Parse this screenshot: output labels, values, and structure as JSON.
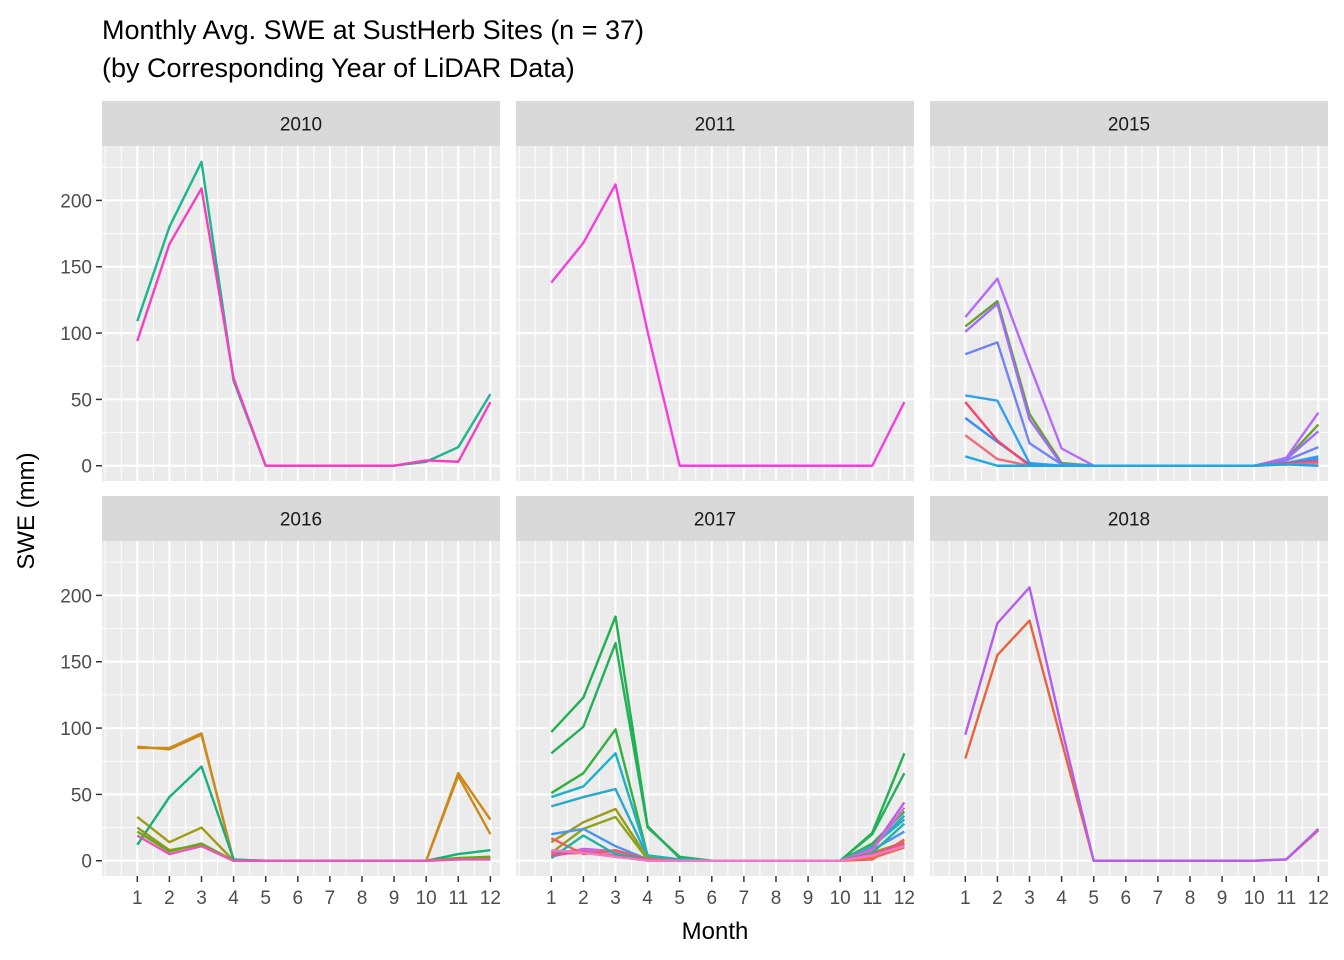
{
  "chart_data": {
    "type": "line",
    "title": "Monthly Avg. SWE at SustHerb Sites (n = 37)",
    "subtitle": "(by Corresponding Year of LiDAR Data)",
    "xlabel": "Month",
    "ylabel": "SWE (mm)",
    "x": [
      1,
      2,
      3,
      4,
      5,
      6,
      7,
      8,
      9,
      10,
      11,
      12
    ],
    "x_ticks": [
      "1",
      "2",
      "3",
      "4",
      "5",
      "6",
      "7",
      "8",
      "9",
      "10",
      "11",
      "12"
    ],
    "y_ticks": [
      "0",
      "50",
      "100",
      "150",
      "200"
    ],
    "xlim": [
      -0.1,
      12.3
    ],
    "ylim": [
      -11.5,
      241
    ],
    "grid": true,
    "facets": [
      {
        "label": "2010",
        "series": [
          {
            "color": "#1db68c",
            "values": [
              109,
              180,
              229,
              64,
              0,
              0,
              0,
              0,
              0,
              3,
              14,
              54
            ]
          },
          {
            "color": "#f53fbe",
            "values": [
              94,
              167,
              209,
              66,
              0,
              0,
              0,
              0,
              0,
              4,
              3,
              48
            ]
          }
        ]
      },
      {
        "label": "2011",
        "series": [
          {
            "color": "#f53fdc",
            "values": [
              138,
              168,
              212,
              101,
              0,
              0,
              0,
              0,
              0,
              0,
              0,
              48
            ]
          }
        ]
      },
      {
        "label": "2015",
        "series": [
          {
            "color": "#6aa12a",
            "values": [
              105,
              124,
              39,
              2,
              0,
              0,
              0,
              0,
              0,
              0,
              5,
              31
            ]
          },
          {
            "color": "#9c6bff",
            "values": [
              101,
              122,
              35,
              1,
              0,
              0,
              0,
              0,
              0,
              0,
              5,
              26
            ]
          },
          {
            "color": "#b46bfa",
            "values": [
              112,
              141,
              76,
              13,
              0,
              0,
              0,
              0,
              0,
              0,
              6,
              40
            ]
          },
          {
            "color": "#6f84f5",
            "values": [
              84,
              93,
              17,
              1,
              0,
              0,
              0,
              0,
              0,
              0,
              4,
              14
            ]
          },
          {
            "color": "#2ea2f0",
            "values": [
              53,
              49,
              2,
              0,
              0,
              0,
              0,
              0,
              0,
              0,
              2,
              7
            ]
          },
          {
            "color": "#3b8ef0",
            "values": [
              36,
              18,
              1,
              0,
              0,
              0,
              0,
              0,
              0,
              0,
              2,
              5
            ]
          },
          {
            "color": "#f4476b",
            "values": [
              48,
              19,
              0,
              0,
              0,
              0,
              0,
              0,
              0,
              0,
              2,
              3
            ]
          },
          {
            "color": "#ef6d7f",
            "values": [
              23,
              5,
              0,
              0,
              0,
              0,
              0,
              0,
              0,
              0,
              1,
              2
            ]
          },
          {
            "color": "#1fa8e0",
            "values": [
              7,
              0,
              0,
              0,
              0,
              0,
              0,
              0,
              0,
              0,
              1,
              0
            ]
          }
        ]
      },
      {
        "label": "2016",
        "series": [
          {
            "color": "#cf8710",
            "values": [
              86,
              84,
              95,
              0,
              0,
              0,
              0,
              0,
              0,
              0,
              66,
              31
            ]
          },
          {
            "color": "#c98a1e",
            "values": [
              85,
              85,
              96,
              0,
              0,
              0,
              0,
              0,
              0,
              0,
              64,
              20
            ]
          },
          {
            "color": "#a39a12",
            "values": [
              33,
              14,
              25,
              0,
              0,
              0,
              0,
              0,
              0,
              0,
              1,
              1
            ]
          },
          {
            "color": "#17b07a",
            "values": [
              12,
              48,
              71,
              1,
              0,
              0,
              0,
              0,
              0,
              0,
              5,
              8
            ]
          },
          {
            "color": "#8c9b1c",
            "values": [
              25,
              8,
              12,
              0,
              0,
              0,
              0,
              0,
              0,
              0,
              2,
              2
            ]
          },
          {
            "color": "#6aa61b",
            "values": [
              22,
              7,
              13,
              0,
              0,
              0,
              0,
              0,
              0,
              0,
              2,
              3
            ]
          },
          {
            "color": "#e956b8",
            "values": [
              19,
              5,
              11,
              0,
              0,
              0,
              0,
              0,
              0,
              0,
              1,
              1
            ]
          }
        ]
      },
      {
        "label": "2017",
        "series": [
          {
            "color": "#1db24f",
            "values": [
              97,
              123,
              184,
              26,
              2,
              0,
              0,
              0,
              0,
              0,
              21,
              81
            ]
          },
          {
            "color": "#23b05a",
            "values": [
              81,
              101,
              164,
              25,
              3,
              0,
              0,
              0,
              0,
              0,
              20,
              66
            ]
          },
          {
            "color": "#33b13d",
            "values": [
              51,
              66,
              99,
              4,
              1,
              0,
              0,
              0,
              0,
              0,
              13,
              37
            ]
          },
          {
            "color": "#29a9cc",
            "values": [
              41,
              48,
              54,
              3,
              1,
              0,
              0,
              0,
              0,
              0,
              10,
              34
            ]
          },
          {
            "color": "#1fb1c6",
            "values": [
              48,
              56,
              81,
              4,
              1,
              0,
              0,
              0,
              0,
              0,
              11,
              31
            ]
          },
          {
            "color": "#9a9a17",
            "values": [
              14,
              29,
              39,
              2,
              0,
              0,
              0,
              0,
              0,
              0,
              6,
              14
            ]
          },
          {
            "color": "#8aa51c",
            "values": [
              6,
              24,
              33,
              1,
              0,
              0,
              0,
              0,
              0,
              0,
              5,
              12
            ]
          },
          {
            "color": "#4a95ef",
            "values": [
              20,
              24,
              11,
              1,
              0,
              0,
              0,
              0,
              0,
              0,
              8,
              22
            ]
          },
          {
            "color": "#b862e3",
            "values": [
              3,
              9,
              7,
              1,
              0,
              0,
              0,
              0,
              0,
              0,
              9,
              44
            ]
          },
          {
            "color": "#d46ccf",
            "values": [
              6,
              8,
              6,
              1,
              0,
              0,
              0,
              0,
              0,
              0,
              8,
              40
            ]
          },
          {
            "color": "#f25c5c",
            "values": [
              17,
              5,
              8,
              1,
              0,
              0,
              0,
              0,
              0,
              0,
              1,
              16
            ]
          },
          {
            "color": "#ef6a4b",
            "values": [
              5,
              6,
              4,
              1,
              0,
              0,
              0,
              0,
              0,
              0,
              2,
              10
            ]
          },
          {
            "color": "#21b5a1",
            "values": [
              2,
              19,
              5,
              1,
              0,
              0,
              0,
              0,
              0,
              0,
              6,
              28
            ]
          },
          {
            "color": "#e8518e",
            "values": [
              4,
              7,
              3,
              1,
              0,
              0,
              0,
              0,
              0,
              0,
              5,
              13
            ]
          },
          {
            "color": "#f07ac8",
            "values": [
              8,
              6,
              3,
              0,
              0,
              0,
              0,
              0,
              0,
              0,
              4,
              11
            ]
          }
        ]
      },
      {
        "label": "2018",
        "series": [
          {
            "color": "#e8633f",
            "values": [
              77,
              155,
              181,
              90,
              0,
              0,
              0,
              0,
              0,
              0,
              1,
              23
            ]
          },
          {
            "color": "#b45cf0",
            "values": [
              95,
              179,
              206,
              100,
              0,
              0,
              0,
              0,
              0,
              0,
              1,
              24
            ]
          }
        ]
      }
    ]
  }
}
